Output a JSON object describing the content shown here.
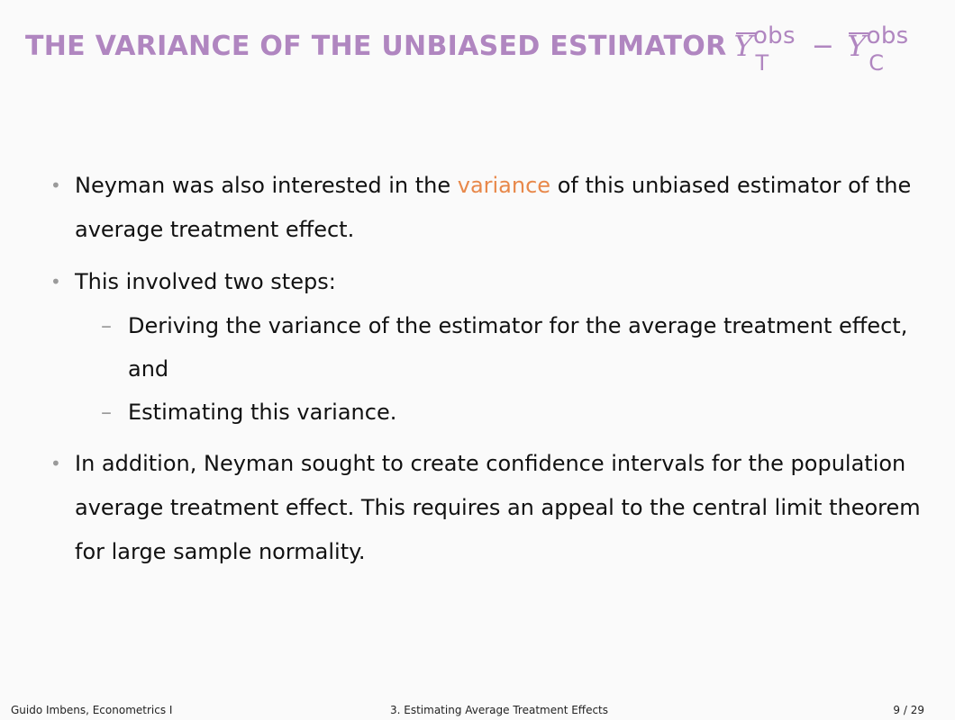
{
  "title": {
    "text": "THE VARIANCE OF THE UNBIASED ESTIMATOR",
    "math": {
      "term1": {
        "base": "Y",
        "sup": "obs",
        "sub": "T"
      },
      "operator": "−",
      "term2": {
        "base": "Y",
        "sup": "obs",
        "sub": "C"
      }
    }
  },
  "bullets": {
    "b1": {
      "marker": "•",
      "before": "Neyman was also interested in the ",
      "highlight": "variance",
      "after": " of this unbiased estimator of the average treatment effect."
    },
    "b2": {
      "marker": "•",
      "text": "This involved two steps:",
      "subs": [
        {
          "marker": "–",
          "text": "Deriving the variance of the estimator for the average treatment effect, and"
        },
        {
          "marker": "–",
          "text": "Estimating this variance."
        }
      ]
    },
    "b3": {
      "marker": "•",
      "text": "In addition, Neyman sought to create confidence intervals for the population average treatment effect. This requires an appeal to the central limit theorem for large sample normality."
    }
  },
  "footer": {
    "left": "Guido Imbens, Econometrics I",
    "center": "3. Estimating Average Treatment Effects",
    "right": "9 / 29"
  },
  "colors": {
    "title": "#b086c0",
    "highlight": "#e8884a",
    "bullet_marker": "#9a9a9a",
    "background": "#fafafa"
  }
}
